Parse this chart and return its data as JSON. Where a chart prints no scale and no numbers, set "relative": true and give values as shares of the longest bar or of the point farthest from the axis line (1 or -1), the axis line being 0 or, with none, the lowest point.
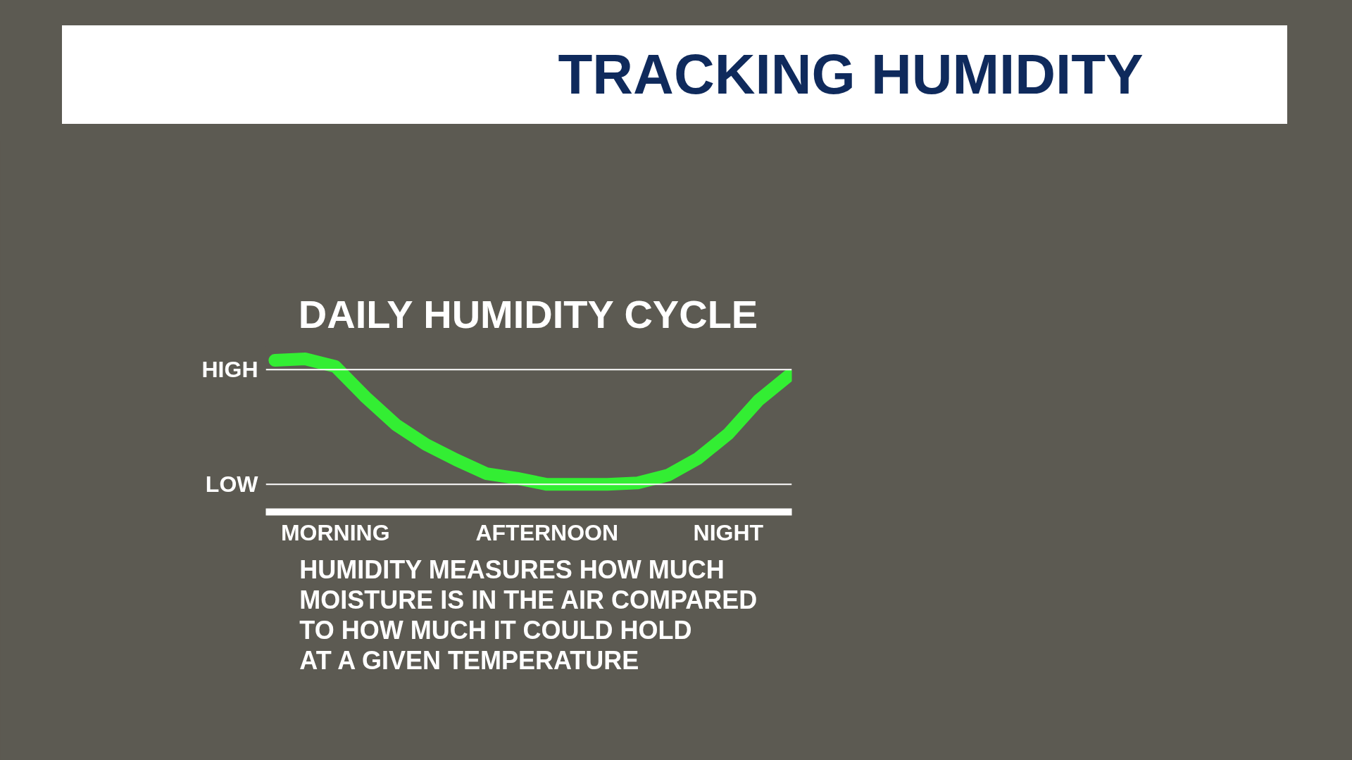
{
  "chart_data": {
    "type": "line",
    "title": "TRACKING HUMIDITY",
    "subtitle": "DAILY HUMIDITY CYCLE",
    "relative": true,
    "categories": [
      null,
      null,
      "MORNING",
      null,
      null,
      null,
      null,
      null,
      null,
      "AFTERNOON",
      null,
      null,
      null,
      null,
      null,
      "NIGHT",
      null,
      null
    ],
    "series": [
      {
        "color": "#33ee33",
        "values": [
          0.99,
          1.0,
          0.95,
          0.75,
          0.57,
          0.44,
          0.34,
          0.25,
          0.22,
          0.18,
          0.18,
          0.18,
          0.19,
          0.24,
          0.35,
          0.51,
          0.73,
          0.89
        ]
      }
    ],
    "ref_lines": [
      {
        "axis": "y",
        "value": 0.93,
        "label": "HIGH",
        "color": "#ffffff"
      },
      {
        "axis": "y",
        "value": 0.18,
        "label": "LOW",
        "color": "#ffffff"
      }
    ],
    "line_style": "solid",
    "annotations": [
      "HUMIDITY MEASURES HOW MUCH\nMOISTURE IS IN THE AIR COMPARED\nTO HOW MUCH IT COULD HOLD\nAT A GIVEN TEMPERATURE"
    ]
  }
}
